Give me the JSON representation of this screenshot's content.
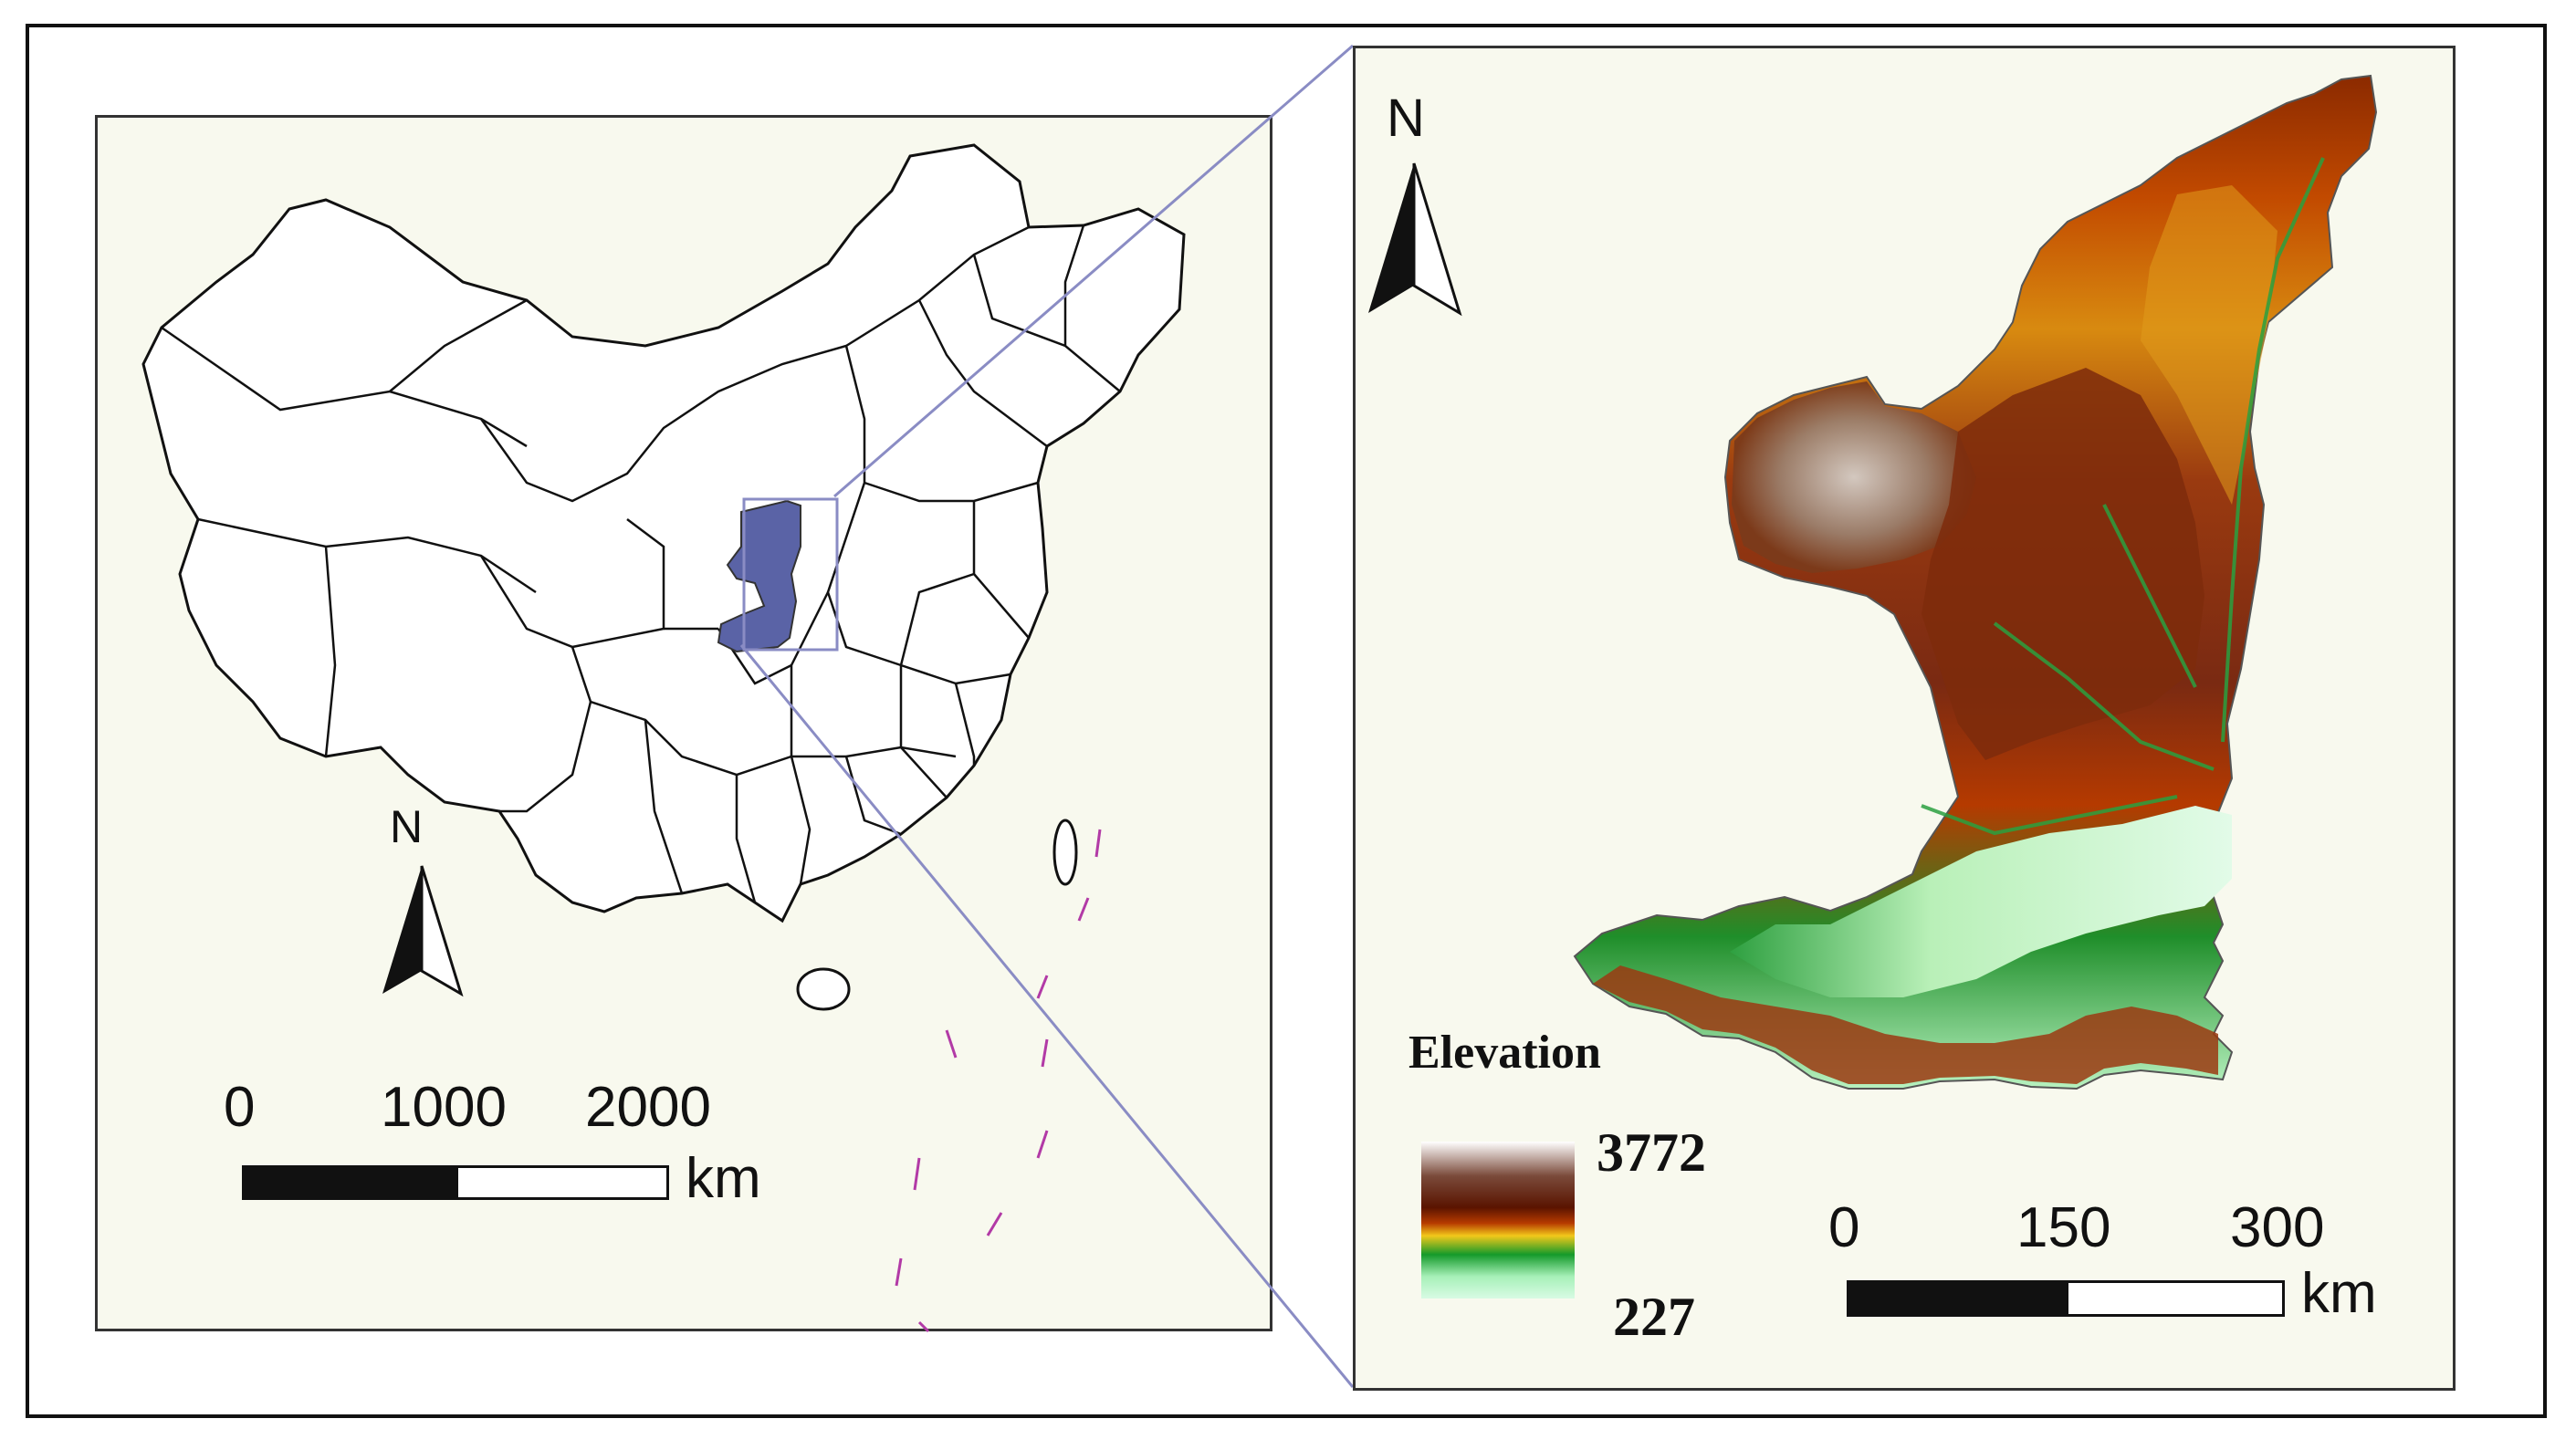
{
  "overview": {
    "north_label": "N",
    "scale": {
      "tick_0": "0",
      "tick_1": "1000",
      "tick_2": "2000",
      "unit": "km"
    }
  },
  "detail": {
    "north_label": "N",
    "legend": {
      "title": "Elevation",
      "max": "3772",
      "min": "227",
      "ramp_colors": [
        "#ffffff",
        "#7a4a3a",
        "#5a1400",
        "#b63b00",
        "#f2c81a",
        "#149a2a",
        "#a7f0b8",
        "#d8fbe4"
      ]
    },
    "scale": {
      "tick_0": "0",
      "tick_1": "150",
      "tick_2": "300",
      "unit": "km"
    }
  },
  "colors": {
    "province_fill": "#ffffff",
    "highlight_fill": "#5a63a6",
    "connector": "#8a8cc4",
    "panel_bg": "#f8f9ee",
    "dashed_line": "#b23aa6"
  }
}
